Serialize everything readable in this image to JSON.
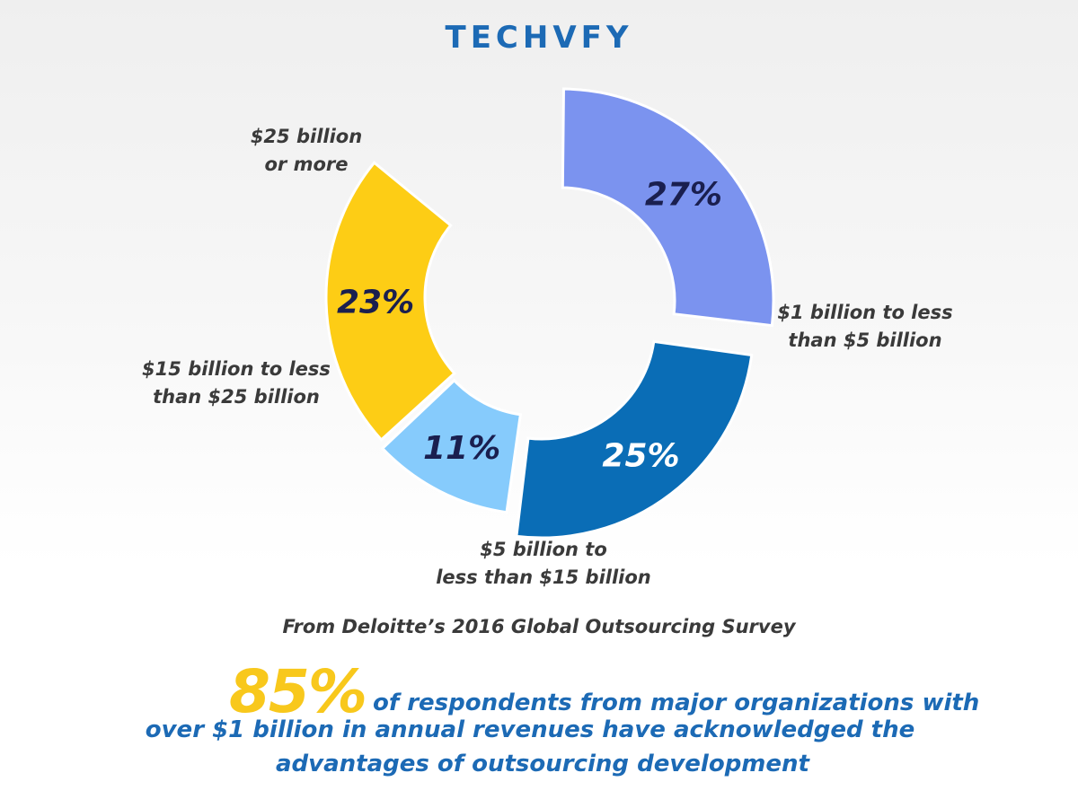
{
  "brand": {
    "logo_text": "TECHVFY",
    "color": "#1c6ab5"
  },
  "chart_data": {
    "type": "pie",
    "title": "",
    "categories": [
      "$1 billion to less than $5 billion",
      "$5 billion to less than $15 billion",
      "$15 billion to less than $25 billion",
      "$25 billion or more"
    ],
    "values": [
      27,
      25,
      11,
      23
    ],
    "value_labels": [
      "27%",
      "25%",
      "11%",
      "23%"
    ],
    "colors": [
      "#7b93ef",
      "#0a6db6",
      "#86cbfc",
      "#fdcd15"
    ],
    "value_label_colors": [
      "#1a1f4f",
      "#ffffff",
      "#1a1f4f",
      "#1a1f4f"
    ],
    "label_lines": [
      [
        "$1 billion to less",
        "than $5 billion"
      ],
      [
        "$5 billion to",
        "less than $15 billion"
      ],
      [
        "$15 billion to less",
        "than $25 billion"
      ],
      [
        "$25 billion",
        "or more"
      ]
    ],
    "style": "donut",
    "legend": "none"
  },
  "source": "From Deloitte’s 2016 Global Outsourcing Survey",
  "highlight": {
    "big_number": "85%",
    "line1": "of respondents from major organizations with",
    "line2": "over $1 billion in annual revenues have acknowledged the",
    "line3": "advantages of outsourcing development",
    "number_color": "#f8c81c",
    "text_color": "#1c6ab5"
  }
}
